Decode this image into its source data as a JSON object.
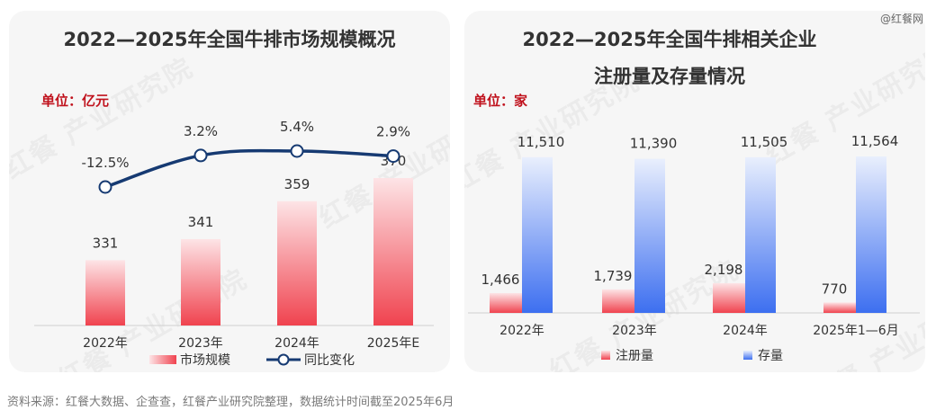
{
  "watermark": "@红餐网",
  "footer": {
    "source": "资料来源：红餐大数据、企查查，红餐产业研究院整理，数据统计时间截至2025年6月"
  },
  "charts": {
    "market": {
      "title": "2022—2025年全国牛排市场规模概况",
      "unit": "单位：亿元",
      "legend_bar": "市场规模",
      "legend_line": "同比变化"
    },
    "enterprise": {
      "title_line1": "2022—2025年全国牛排相关企业",
      "title_line2": "注册量及存量情况",
      "unit": "单位：家",
      "legend_reg": "注册量",
      "legend_stock": "存量"
    }
  },
  "chart_data": [
    {
      "type": "bar",
      "title": "2022—2025年全国牛排市场规模概况",
      "unit": "单位：亿元",
      "categories": [
        "2022年",
        "2023年",
        "2024年",
        "2025年E"
      ],
      "series": [
        {
          "name": "市场规模",
          "type": "bar",
          "values": [
            331,
            341,
            359,
            370
          ],
          "labels": [
            "331",
            "341",
            "359",
            "370"
          ],
          "color": "#f0434f"
        },
        {
          "name": "同比变化",
          "type": "line",
          "values": [
            -12.5,
            3.2,
            5.4,
            2.9
          ],
          "labels": [
            "-12.5%",
            "3.2%",
            "5.4%",
            "2.9%"
          ],
          "color": "#163a72"
        }
      ],
      "legend": "bottom",
      "grid": false
    },
    {
      "type": "bar",
      "title": "2022—2025年全国牛排相关企业注册量及存量情况",
      "unit": "单位：家",
      "categories": [
        "2022年",
        "2023年",
        "2024年",
        "2025年1—6月"
      ],
      "series": [
        {
          "name": "注册量",
          "values": [
            1466,
            1739,
            2198,
            770
          ],
          "labels": [
            "1,466",
            "1,739",
            "2,198",
            "770"
          ],
          "color": "#f0434f"
        },
        {
          "name": "存量",
          "values": [
            11510,
            11390,
            11505,
            11564
          ],
          "labels": [
            "11,510",
            "11,390",
            "11,505",
            "11,564"
          ],
          "color": "#3d6ff0"
        }
      ],
      "legend": "bottom",
      "grid": false
    }
  ]
}
